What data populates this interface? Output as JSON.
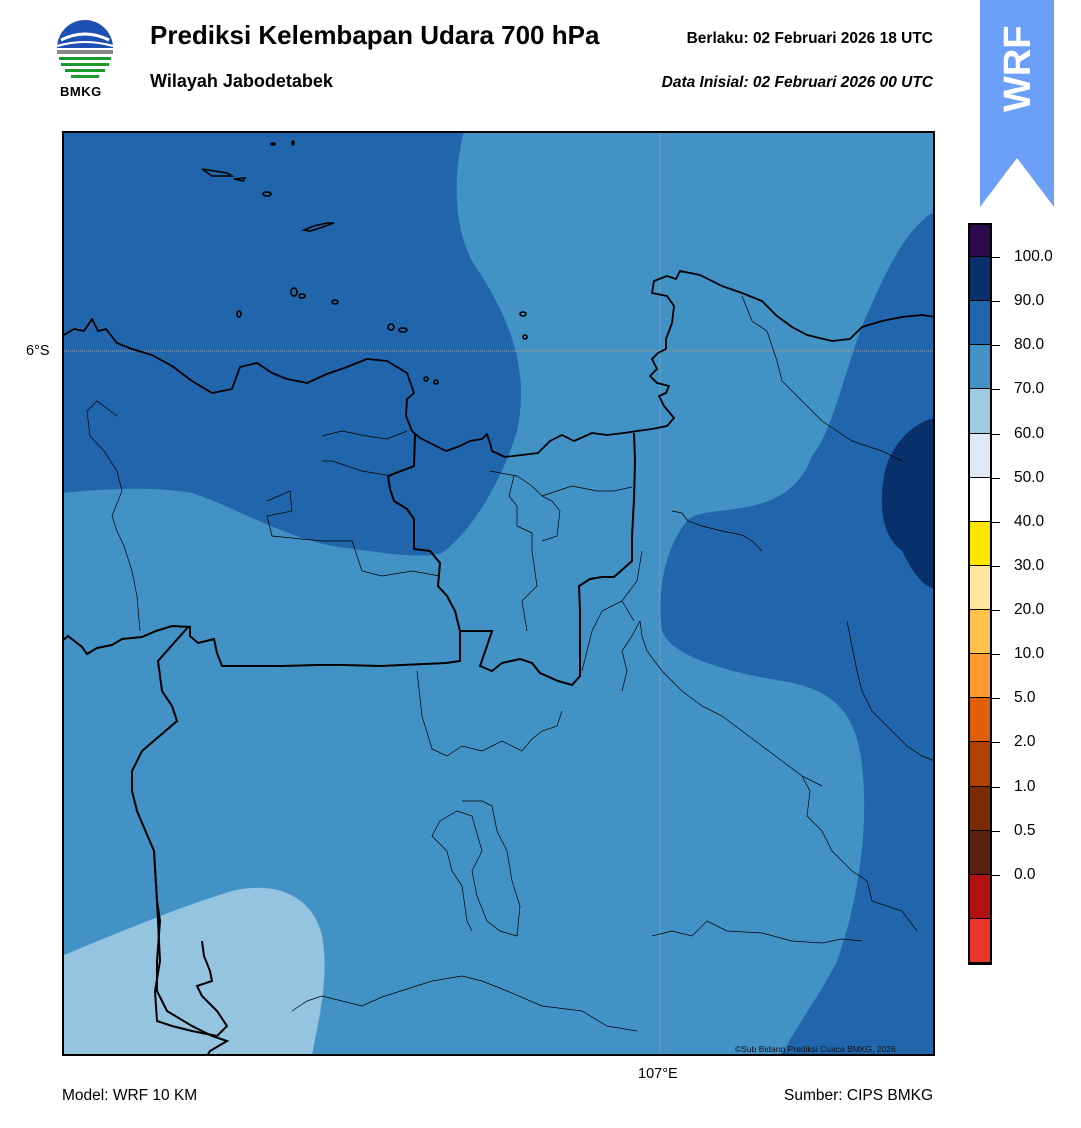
{
  "header": {
    "title": "Prediksi Kelembapan Udara 700 hPa",
    "subtitle": "Wilayah Jabodetabek",
    "valid_label": "Berlaku:  02 Februari 2026 18 UTC",
    "init_label": "Data Inisial:  02 Februari 2026 00 UTC"
  },
  "logo": {
    "text": "BMKG"
  },
  "banner": {
    "text": "WRF",
    "color": "#6b9ff8"
  },
  "map": {
    "lat_label": "6°S",
    "lon_label": "107°E",
    "copyright": "©Sub Bidang Prediksi Cuaca BMKG, 2026",
    "fill_colors": {
      "band_60_70": "#94c4df",
      "band_70_80": "#4292c6",
      "band_80_90": "#2166ac",
      "band_90_100": "#08306b"
    }
  },
  "colorbar": {
    "top_color": "#2d0a4e",
    "colors": [
      "#2d0a4e",
      "#08306b",
      "#2166ac",
      "#4292c6",
      "#9ecae1",
      "#deebf7",
      "#ffffff",
      "#ffe600",
      "#ffe6a0",
      "#ffc24d",
      "#ff9a2e",
      "#e0600a",
      "#b14200",
      "#7a2c06",
      "#5a2010",
      "#b31212",
      "#e8362c"
    ],
    "labels": [
      "100.0",
      "90.0",
      "80.0",
      "70.0",
      "60.0",
      "50.0",
      "40.0",
      "30.0",
      "20.0",
      "10.0",
      "5.0",
      "2.0",
      "1.0",
      "0.5",
      "0.0"
    ]
  },
  "footer": {
    "model": "Model: WRF 10 KM",
    "source": "Sumber: CIPS BMKG"
  }
}
